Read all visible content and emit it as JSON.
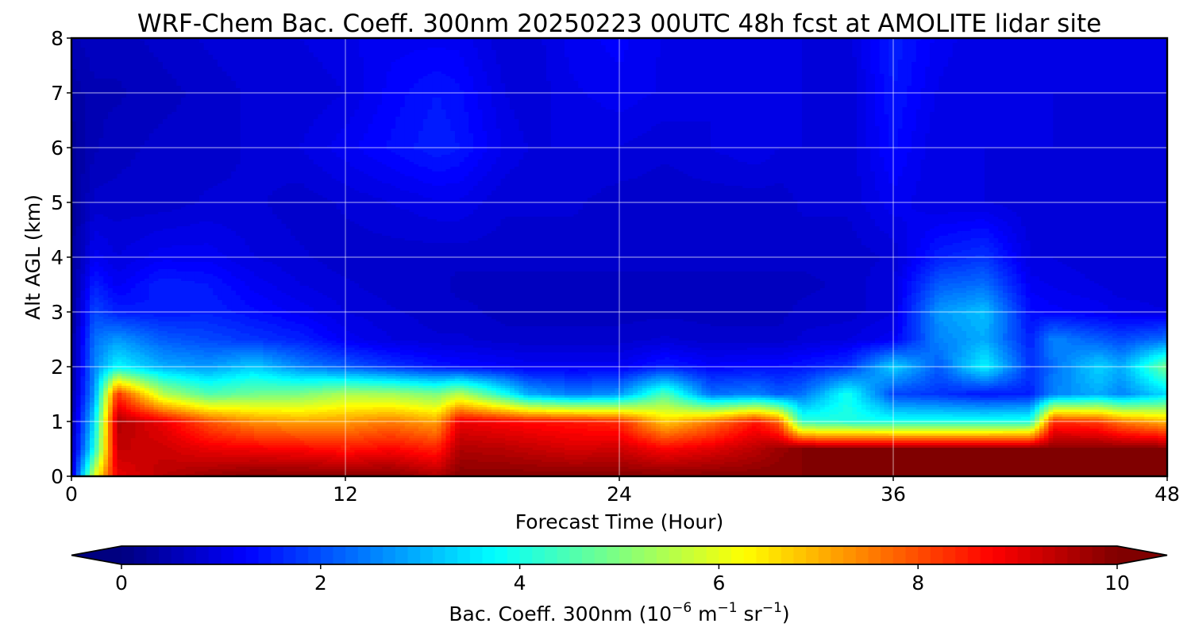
{
  "chart_data": {
    "type": "heatmap",
    "title": "WRF-Chem Bac. Coeff. 300nm  20250223 00UTC 48h fcst at AMOLITE lidar site",
    "xlabel": "Forecast Time (Hour)",
    "ylabel": "Alt AGL (km)",
    "xlim": [
      0,
      48
    ],
    "ylim": [
      0,
      8
    ],
    "x_ticks": [
      "0",
      "12",
      "24",
      "36",
      "48"
    ],
    "y_ticks": [
      "0",
      "1",
      "2",
      "3",
      "4",
      "5",
      "6",
      "7",
      "8"
    ],
    "grid": true,
    "colormap": "jet",
    "colorbar": {
      "orientation": "horizontal",
      "location": "bottom",
      "vmin": 0,
      "vmax": 10,
      "extend": "both",
      "ticks": [
        "0",
        "2",
        "4",
        "6",
        "8",
        "10"
      ],
      "label_main": "Bac. Coeff. 300nm  (10",
      "label_exp1": "−6",
      "label_mid1": " m",
      "label_exp2": "−1",
      "label_mid2": " sr",
      "label_exp3": "−1",
      "label_end": ")"
    },
    "time_hours": [
      0,
      1,
      2,
      4,
      6,
      8,
      10,
      12,
      14,
      16,
      17,
      19,
      20,
      22,
      24,
      26,
      28,
      30,
      31,
      32,
      34,
      36,
      38,
      40,
      42,
      43,
      45,
      46,
      48
    ],
    "altitude_km": [
      0,
      0.5,
      1,
      1.5,
      2,
      2.5,
      3,
      3.5,
      4,
      5,
      6,
      7,
      8
    ],
    "values": [
      [
        0.8,
        6.0,
        9.0,
        9.5,
        9.8,
        10.0,
        10.0,
        10.0,
        10.0,
        9.6,
        10.0,
        10.0,
        10.0,
        10.0,
        10.0,
        10.0,
        10.0,
        10.0,
        10.0,
        10.0,
        10.0,
        10.0,
        10.0,
        10.0,
        10.0,
        10.0,
        10.0,
        10.0,
        10.0
      ],
      [
        0.6,
        4.0,
        9.4,
        9.3,
        9.0,
        8.9,
        8.8,
        8.6,
        8.8,
        8.5,
        9.6,
        9.5,
        9.4,
        9.2,
        9.3,
        8.8,
        9.1,
        9.5,
        9.8,
        10.0,
        10.0,
        10.0,
        10.0,
        10.0,
        10.0,
        10.0,
        10.0,
        10.0,
        10.0
      ],
      [
        0.5,
        3.5,
        9.6,
        9.0,
        8.0,
        7.4,
        7.2,
        7.3,
        7.6,
        7.2,
        9.0,
        8.8,
        8.7,
        8.6,
        8.4,
        6.8,
        7.6,
        8.6,
        7.8,
        4.3,
        4.1,
        4.0,
        4.0,
        4.0,
        4.1,
        8.4,
        8.2,
        7.6,
        7.0
      ],
      [
        0.4,
        2.8,
        8.4,
        5.6,
        4.6,
        4.9,
        5.0,
        5.5,
        5.4,
        5.0,
        5.6,
        4.0,
        3.0,
        2.5,
        2.8,
        4.6,
        2.4,
        2.6,
        2.2,
        2.4,
        4.0,
        2.0,
        1.8,
        1.5,
        1.6,
        2.6,
        3.0,
        2.6,
        3.5
      ],
      [
        0.3,
        2.6,
        3.8,
        3.0,
        2.8,
        3.3,
        2.6,
        2.2,
        1.8,
        1.5,
        1.4,
        1.3,
        1.2,
        1.2,
        1.2,
        1.6,
        1.3,
        1.4,
        1.4,
        1.5,
        1.8,
        3.4,
        2.2,
        3.8,
        1.8,
        2.4,
        3.4,
        3.0,
        5.0
      ],
      [
        0.3,
        2.4,
        2.8,
        2.2,
        2.0,
        1.8,
        1.6,
        1.2,
        1.0,
        0.9,
        0.9,
        0.8,
        0.8,
        0.8,
        0.8,
        0.9,
        0.8,
        0.8,
        0.8,
        0.9,
        1.0,
        1.2,
        2.6,
        3.0,
        1.6,
        2.6,
        2.2,
        2.0,
        2.4
      ],
      [
        0.3,
        2.0,
        1.6,
        1.5,
        1.6,
        1.4,
        1.2,
        1.0,
        0.9,
        0.8,
        0.8,
        0.7,
        0.7,
        0.7,
        0.7,
        0.7,
        0.7,
        0.7,
        0.7,
        0.8,
        0.8,
        1.0,
        2.8,
        3.2,
        1.4,
        1.3,
        1.2,
        1.1,
        1.0
      ],
      [
        0.3,
        1.6,
        1.2,
        1.6,
        1.5,
        1.2,
        1.0,
        0.9,
        0.8,
        0.8,
        0.7,
        0.7,
        0.7,
        0.7,
        0.7,
        0.7,
        0.7,
        0.7,
        0.7,
        0.7,
        0.8,
        1.0,
        2.2,
        2.4,
        1.2,
        1.1,
        1.0,
        0.9,
        0.9
      ],
      [
        0.3,
        1.2,
        1.0,
        1.2,
        1.2,
        1.0,
        0.9,
        0.8,
        0.8,
        0.8,
        0.8,
        0.8,
        0.8,
        0.8,
        0.8,
        0.8,
        0.8,
        0.8,
        0.8,
        0.8,
        0.8,
        0.9,
        1.6,
        1.8,
        1.0,
        1.0,
        0.9,
        0.9,
        0.9
      ],
      [
        0.3,
        0.8,
        0.8,
        0.8,
        0.9,
        0.9,
        0.8,
        0.9,
        1.0,
        1.1,
        1.1,
        0.9,
        0.9,
        0.9,
        0.8,
        0.8,
        0.8,
        0.8,
        0.8,
        0.9,
        0.9,
        1.2,
        1.0,
        1.0,
        0.9,
        0.9,
        0.9,
        0.9,
        0.9
      ],
      [
        0.3,
        0.6,
        0.7,
        0.8,
        0.8,
        0.9,
        1.0,
        1.2,
        1.4,
        1.6,
        1.5,
        1.1,
        1.0,
        1.0,
        1.0,
        0.9,
        1.0,
        1.1,
        1.0,
        1.0,
        0.9,
        1.4,
        1.0,
        1.0,
        1.0,
        1.0,
        0.9,
        0.9,
        0.9
      ],
      [
        0.4,
        0.6,
        0.6,
        0.7,
        0.8,
        0.9,
        0.9,
        1.0,
        1.3,
        1.5,
        1.4,
        1.0,
        0.9,
        1.1,
        1.2,
        1.1,
        1.0,
        1.0,
        1.1,
        1.0,
        0.9,
        1.5,
        1.1,
        1.0,
        1.0,
        1.0,
        1.0,
        1.0,
        1.0
      ],
      [
        0.6,
        0.7,
        0.7,
        0.8,
        0.9,
        1.0,
        1.0,
        1.1,
        1.2,
        1.2,
        1.2,
        0.9,
        0.9,
        1.2,
        1.3,
        1.1,
        1.0,
        1.0,
        1.1,
        1.0,
        0.9,
        1.6,
        1.2,
        1.0,
        1.0,
        1.0,
        1.0,
        1.0,
        1.0
      ]
    ]
  }
}
